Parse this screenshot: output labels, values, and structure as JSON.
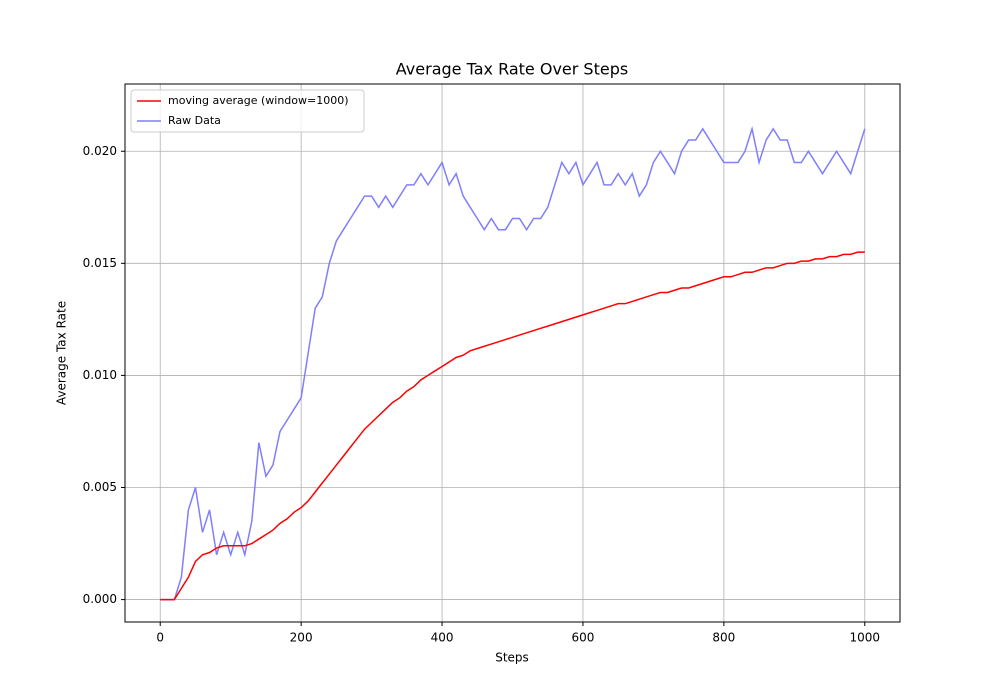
{
  "chart_data": {
    "type": "line",
    "title": "Average Tax Rate Over Steps",
    "x_label": "Steps",
    "y_label": "Average Tax Rate",
    "x": [
      0,
      10,
      20,
      30,
      40,
      50,
      60,
      70,
      80,
      90,
      100,
      110,
      120,
      130,
      140,
      150,
      160,
      170,
      180,
      190,
      200,
      210,
      220,
      230,
      240,
      250,
      260,
      270,
      280,
      290,
      300,
      310,
      320,
      330,
      340,
      350,
      360,
      370,
      380,
      390,
      400,
      410,
      420,
      430,
      440,
      450,
      460,
      470,
      480,
      490,
      500,
      510,
      520,
      530,
      540,
      550,
      560,
      570,
      580,
      590,
      600,
      610,
      620,
      630,
      640,
      650,
      660,
      670,
      680,
      690,
      700,
      710,
      720,
      730,
      740,
      750,
      760,
      770,
      780,
      790,
      800,
      810,
      820,
      830,
      840,
      850,
      860,
      870,
      880,
      890,
      900,
      910,
      920,
      930,
      940,
      950,
      960,
      970,
      980,
      990,
      1000
    ],
    "series": [
      {
        "name": "moving average (window=1000)",
        "color": "#ff0000",
        "values": [
          0,
          0,
          0,
          0.0005,
          0.001,
          0.0017,
          0.002,
          0.0021,
          0.0023,
          0.0024,
          0.0024,
          0.0024,
          0.0024,
          0.0025,
          0.0027,
          0.0029,
          0.0031,
          0.0034,
          0.0036,
          0.0039,
          0.0041,
          0.0044,
          0.0048,
          0.0052,
          0.0056,
          0.006,
          0.0064,
          0.0068,
          0.0072,
          0.0076,
          0.0079,
          0.0082,
          0.0085,
          0.0088,
          0.009,
          0.0093,
          0.0095,
          0.0098,
          0.01,
          0.0102,
          0.0104,
          0.0106,
          0.0108,
          0.0109,
          0.0111,
          0.0112,
          0.0113,
          0.0114,
          0.0115,
          0.0116,
          0.0117,
          0.0118,
          0.0119,
          0.012,
          0.0121,
          0.0122,
          0.0123,
          0.0124,
          0.0125,
          0.0126,
          0.0127,
          0.0128,
          0.0129,
          0.013,
          0.0131,
          0.0132,
          0.0132,
          0.0133,
          0.0134,
          0.0135,
          0.0136,
          0.0137,
          0.0137,
          0.0138,
          0.0139,
          0.0139,
          0.014,
          0.0141,
          0.0142,
          0.0143,
          0.0144,
          0.0144,
          0.0145,
          0.0146,
          0.0146,
          0.0147,
          0.0148,
          0.0148,
          0.0149,
          0.015,
          0.015,
          0.0151,
          0.0151,
          0.0152,
          0.0152,
          0.0153,
          0.0153,
          0.0154,
          0.0154,
          0.0155,
          0.0155
        ]
      },
      {
        "name": "Raw Data",
        "color": "#7f7fff",
        "values": [
          0,
          0,
          0,
          0.001,
          0.004,
          0.005,
          0.003,
          0.004,
          0.002,
          0.003,
          0.002,
          0.003,
          0.002,
          0.0035,
          0.007,
          0.0055,
          0.006,
          0.0075,
          0.008,
          0.0085,
          0.009,
          0.011,
          0.013,
          0.0135,
          0.015,
          0.016,
          0.0165,
          0.017,
          0.0175,
          0.018,
          0.018,
          0.0175,
          0.018,
          0.0175,
          0.018,
          0.0185,
          0.0185,
          0.019,
          0.0185,
          0.019,
          0.0195,
          0.0185,
          0.019,
          0.018,
          0.0175,
          0.017,
          0.0165,
          0.017,
          0.0165,
          0.0165,
          0.017,
          0.017,
          0.0165,
          0.017,
          0.017,
          0.0175,
          0.0185,
          0.0195,
          0.019,
          0.0195,
          0.0185,
          0.019,
          0.0195,
          0.0185,
          0.0185,
          0.019,
          0.0185,
          0.019,
          0.018,
          0.0185,
          0.0195,
          0.02,
          0.0195,
          0.019,
          0.02,
          0.0205,
          0.0205,
          0.021,
          0.0205,
          0.02,
          0.0195,
          0.0195,
          0.0195,
          0.02,
          0.021,
          0.0195,
          0.0205,
          0.021,
          0.0205,
          0.0205,
          0.0195,
          0.0195,
          0.02,
          0.0195,
          0.019,
          0.0195,
          0.02,
          0.0195,
          0.019,
          0.02,
          0.021
        ]
      }
    ],
    "xlim": [
      -50,
      1050
    ],
    "ylim": [
      -0.001,
      0.023
    ],
    "xticks": [
      0,
      200,
      400,
      600,
      800,
      1000
    ],
    "yticks": [
      {
        "value": 0,
        "label": "0.000"
      },
      {
        "value": 0.005,
        "label": "0.005"
      },
      {
        "value": 0.01,
        "label": "0.010"
      },
      {
        "value": 0.015,
        "label": "0.015"
      },
      {
        "value": 0.02,
        "label": "0.020"
      }
    ],
    "grid": true,
    "legend": "upper left"
  }
}
